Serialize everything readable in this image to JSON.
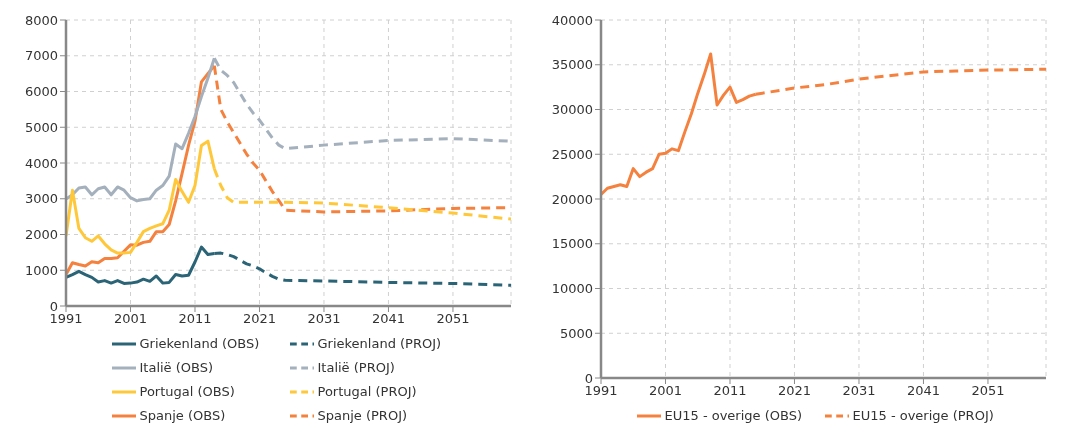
{
  "chart_data": [
    {
      "type": "line",
      "xlim": [
        1991,
        2060
      ],
      "xticks": [
        1991,
        2001,
        2011,
        2021,
        2031,
        2041,
        2051
      ],
      "ylim": [
        0,
        8000
      ],
      "yticks": [
        0,
        1000,
        2000,
        3000,
        4000,
        5000,
        6000,
        7000,
        8000
      ],
      "grid": true,
      "legend": "bottom",
      "marker": "none",
      "series": [
        {
          "name": "Spanje (OBS)",
          "color": "#f4813e",
          "line_style": "solid",
          "x": [
            1991,
            1992,
            1993,
            1994,
            1995,
            1996,
            1997,
            1998,
            1999,
            2000,
            2001,
            2002,
            2003,
            2004,
            2005,
            2006,
            2007,
            2008,
            2009,
            2010,
            2011,
            2012,
            2013,
            2014
          ],
          "values": [
            880,
            1210,
            1160,
            1120,
            1240,
            1210,
            1330,
            1330,
            1350,
            1530,
            1710,
            1700,
            1780,
            1810,
            2080,
            2080,
            2280,
            2940,
            3710,
            4490,
            5170,
            6270,
            6500,
            6720
          ]
        },
        {
          "name": "Spanje (PROJ)",
          "color": "#f4813e",
          "line_style": "dashed",
          "x": [
            2014,
            2015,
            2016,
            2017,
            2018,
            2019,
            2020,
            2021,
            2022,
            2023,
            2024,
            2025,
            2031,
            2041,
            2051,
            2060
          ],
          "values": [
            6720,
            5500,
            5150,
            4850,
            4550,
            4250,
            4000,
            3800,
            3500,
            3200,
            2950,
            2680,
            2630,
            2660,
            2730,
            2750
          ]
        },
        {
          "name": "Griekenland (OBS)",
          "color": "#2b6477",
          "line_style": "solid",
          "x": [
            1991,
            1992,
            1993,
            1994,
            1995,
            1996,
            1997,
            1998,
            1999,
            2000,
            2001,
            2002,
            2003,
            2004,
            2005,
            2006,
            2007,
            2008,
            2009,
            2010,
            2011,
            2012,
            2013,
            2014
          ],
          "values": [
            800,
            880,
            970,
            880,
            800,
            670,
            710,
            640,
            710,
            630,
            640,
            670,
            750,
            690,
            840,
            640,
            660,
            880,
            840,
            860,
            1230,
            1650,
            1440,
            1470
          ]
        },
        {
          "name": "Griekenland (PROJ)",
          "color": "#2b6477",
          "line_style": "dashed",
          "x": [
            2014,
            2015,
            2016,
            2017,
            2018,
            2019,
            2020,
            2021,
            2022,
            2023,
            2024,
            2025,
            2031,
            2041,
            2051,
            2060
          ],
          "values": [
            1470,
            1480,
            1440,
            1380,
            1280,
            1180,
            1120,
            1040,
            930,
            830,
            750,
            720,
            700,
            660,
            630,
            580
          ]
        },
        {
          "name": "Italië (OBS)",
          "color": "#a5b0bd",
          "line_style": "solid",
          "x": [
            1991,
            1992,
            1993,
            1994,
            1995,
            1996,
            1997,
            1998,
            1999,
            2000,
            2001,
            2002,
            2003,
            2004,
            2005,
            2006,
            2007,
            2008,
            2009,
            2010,
            2011,
            2012,
            2013,
            2014
          ],
          "values": [
            2990,
            3110,
            3300,
            3330,
            3110,
            3280,
            3330,
            3110,
            3330,
            3240,
            3030,
            2940,
            2980,
            3000,
            3240,
            3370,
            3630,
            4530,
            4400,
            4830,
            5300,
            5860,
            6370,
            6930
          ]
        },
        {
          "name": "Italië (PROJ)",
          "color": "#a5b0bd",
          "line_style": "dashed",
          "x": [
            2014,
            2015,
            2016,
            2017,
            2018,
            2019,
            2020,
            2021,
            2022,
            2023,
            2024,
            2025,
            2031,
            2041,
            2051,
            2060
          ],
          "values": [
            6930,
            6600,
            6450,
            6250,
            5950,
            5650,
            5400,
            5200,
            4950,
            4700,
            4500,
            4400,
            4500,
            4630,
            4680,
            4610
          ]
        },
        {
          "name": "Portugal (OBS)",
          "color": "#ffc83a",
          "line_style": "solid",
          "x": [
            1991,
            1992,
            1993,
            1994,
            1995,
            1996,
            1997,
            1998,
            1999,
            2000,
            2001,
            2002,
            2003,
            2004,
            2005,
            2006,
            2007,
            2008,
            2009,
            2010,
            2011,
            2012,
            2013,
            2014
          ],
          "values": [
            1960,
            3240,
            2170,
            1910,
            1810,
            1960,
            1740,
            1570,
            1480,
            1480,
            1500,
            1780,
            2080,
            2170,
            2240,
            2300,
            2680,
            3540,
            3200,
            2900,
            3370,
            4490,
            4610,
            3840
          ]
        },
        {
          "name": "Portugal (PROJ)",
          "color": "#ffc83a",
          "line_style": "dashed",
          "x": [
            2014,
            2015,
            2016,
            2017,
            2018,
            2019,
            2020,
            2021,
            2022,
            2023,
            2024,
            2025,
            2031,
            2041,
            2051,
            2060
          ],
          "values": [
            3840,
            3370,
            3030,
            2900,
            2900,
            2900,
            2900,
            2900,
            2900,
            2900,
            2900,
            2900,
            2880,
            2750,
            2600,
            2430
          ]
        }
      ]
    },
    {
      "type": "line",
      "xlim": [
        1991,
        2060
      ],
      "xticks": [
        1991,
        2001,
        2011,
        2021,
        2031,
        2041,
        2051
      ],
      "ylim": [
        0,
        40000
      ],
      "yticks": [
        0,
        5000,
        10000,
        15000,
        20000,
        25000,
        30000,
        35000,
        40000
      ],
      "grid": true,
      "legend": "bottom",
      "marker": "none",
      "series": [
        {
          "name": "EU15 - overige (OBS)",
          "color": "#f4813e",
          "line_style": "solid",
          "x": [
            1991,
            1992,
            1993,
            1994,
            1995,
            1996,
            1997,
            1998,
            1999,
            2000,
            2001,
            2002,
            2003,
            2004,
            2005,
            2006,
            2007,
            2008,
            2009,
            2010,
            2011,
            2012,
            2013,
            2014,
            2015
          ],
          "values": [
            20500,
            21200,
            21400,
            21600,
            21400,
            23400,
            22500,
            23000,
            23400,
            25000,
            25100,
            25600,
            25400,
            27500,
            29500,
            31800,
            33900,
            36200,
            30500,
            31600,
            32500,
            30800,
            31100,
            31500,
            31700
          ]
        },
        {
          "name": "EU15 - overige (PROJ)",
          "color": "#f4813e",
          "line_style": "dashed",
          "x": [
            2015,
            2021,
            2026,
            2031,
            2036,
            2041,
            2046,
            2051,
            2060
          ],
          "values": [
            31700,
            32400,
            32800,
            33400,
            33800,
            34200,
            34300,
            34400,
            34500
          ]
        }
      ]
    }
  ]
}
